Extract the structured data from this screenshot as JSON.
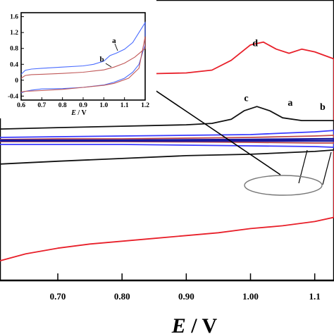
{
  "chart_data": [
    {
      "type": "line",
      "panel": "main",
      "xlabel": {
        "symbol": "E",
        "unit": " / V"
      },
      "ylabel": "",
      "title": "",
      "xlim": [
        0.61,
        1.13
      ],
      "ylim": [
        -1.0,
        1.0
      ],
      "xticks": [
        {
          "value": 0.7,
          "label": "0.70"
        },
        {
          "value": 0.8,
          "label": "0.80"
        },
        {
          "value": 0.9,
          "label": "0.90"
        },
        {
          "value": 1.0,
          "label": "1.00"
        },
        {
          "value": 1.1,
          "label": "1.1"
        }
      ],
      "grid": false,
      "annotation": "ellipse around the a/b curves near 1.00–1.13 V, connected by a line to the inset",
      "series": [
        {
          "label": "d",
          "color": "#e8202a",
          "label_pos": [
            1.003,
            0.67
          ],
          "x": [
            0.61,
            0.65,
            0.7,
            0.75,
            0.8,
            0.85,
            0.9,
            0.94,
            0.97,
            1.0,
            1.02,
            1.04,
            1.06,
            1.08,
            1.1,
            1.13,
            1.13,
            1.1,
            1.05,
            1.0,
            0.95,
            0.9,
            0.85,
            0.8,
            0.75,
            0.7,
            0.65,
            0.61
          ],
          "y": [
            0.38,
            0.4,
            0.43,
            0.455,
            0.47,
            0.475,
            0.48,
            0.5,
            0.57,
            0.68,
            0.7,
            0.65,
            0.62,
            0.65,
            0.63,
            0.58,
            -0.55,
            -0.58,
            -0.61,
            -0.63,
            -0.66,
            -0.68,
            -0.7,
            -0.72,
            -0.74,
            -0.77,
            -0.81,
            -0.86
          ]
        },
        {
          "label": "c",
          "color": "#111111",
          "label_pos": [
            0.99,
            0.28
          ],
          "x": [
            0.61,
            0.7,
            0.8,
            0.9,
            0.94,
            0.97,
            0.99,
            1.01,
            1.03,
            1.05,
            1.08,
            1.11,
            1.13,
            1.13,
            1.1,
            1.05,
            1.0,
            0.9,
            0.8,
            0.7,
            0.61
          ],
          "y": [
            0.08,
            0.09,
            0.1,
            0.11,
            0.12,
            0.15,
            0.21,
            0.24,
            0.21,
            0.16,
            0.14,
            0.14,
            0.14,
            -0.07,
            -0.08,
            -0.09,
            -0.1,
            -0.11,
            -0.13,
            -0.15,
            -0.17
          ]
        },
        {
          "label": "a",
          "color": "#3a3aff",
          "label_pos": [
            1.058,
            0.245
          ],
          "x": [
            0.61,
            0.7,
            0.8,
            0.9,
            1.0,
            1.05,
            1.1,
            1.13,
            1.13,
            1.1,
            1.0,
            0.9,
            0.8,
            0.7,
            0.61
          ],
          "y": [
            0.02,
            0.025,
            0.03,
            0.035,
            0.04,
            0.05,
            0.06,
            0.07,
            -0.05,
            -0.045,
            -0.04,
            -0.035,
            -0.03,
            -0.03,
            -0.03
          ]
        },
        {
          "label": "b",
          "color": "#c24a4a",
          "label_pos": [
            1.108,
            0.215
          ],
          "x": [
            0.61,
            0.7,
            0.8,
            0.9,
            1.0,
            1.05,
            1.1,
            1.13,
            1.13,
            1.1,
            1.0,
            0.9,
            0.8,
            0.7,
            0.61
          ],
          "y": [
            0.005,
            0.01,
            0.01,
            0.015,
            0.02,
            0.025,
            0.03,
            0.035,
            -0.02,
            -0.02,
            -0.015,
            -0.012,
            -0.01,
            -0.01,
            -0.01
          ]
        },
        {
          "label": "",
          "color": "#1a1aa0",
          "x": [
            0.61,
            0.8,
            1.0,
            1.13,
            1.13,
            1.0,
            0.8,
            0.61
          ],
          "y": [
            0.0,
            0.0,
            0.005,
            0.01,
            -0.005,
            -0.005,
            -0.004,
            -0.004
          ]
        }
      ]
    },
    {
      "type": "line",
      "panel": "inset",
      "xlabel": {
        "symbol": "E",
        "unit": " / V"
      },
      "ylabel": "",
      "xlim": [
        0.6,
        1.2
      ],
      "ylim": [
        -0.5,
        1.7
      ],
      "xticks": [
        {
          "value": 0.6,
          "label": "0.6"
        },
        {
          "value": 0.7,
          "label": "0.7"
        },
        {
          "value": 0.8,
          "label": "0.8"
        },
        {
          "value": 0.9,
          "label": "0.9"
        },
        {
          "value": 1.0,
          "label": "1.0"
        },
        {
          "value": 1.1,
          "label": "1.1"
        },
        {
          "value": 1.2,
          "label": "1.2"
        }
      ],
      "yticks": [
        {
          "value": 1.6,
          "label": "1.6"
        },
        {
          "value": 1.2,
          "label": "1.2"
        },
        {
          "value": 0.8,
          "label": "0.8"
        },
        {
          "value": 0.4,
          "label": "0.4"
        },
        {
          "value": 0.0,
          "label": "0"
        },
        {
          "value": -0.4,
          "label": "-0.4"
        }
      ],
      "series": [
        {
          "label": "a",
          "color": "#4a6cff",
          "label_pos": [
            1.04,
            0.94
          ],
          "x": [
            0.6,
            0.62,
            0.65,
            0.7,
            0.8,
            0.9,
            0.95,
            1.0,
            1.03,
            1.06,
            1.1,
            1.14,
            1.17,
            1.2,
            1.2,
            1.17,
            1.14,
            1.1,
            1.05,
            1.0,
            0.9,
            0.8,
            0.7,
            0.65,
            0.62,
            0.6
          ],
          "y": [
            0.15,
            0.25,
            0.28,
            0.3,
            0.33,
            0.36,
            0.4,
            0.48,
            0.62,
            0.68,
            0.78,
            0.95,
            1.2,
            1.45,
            0.9,
            0.4,
            0.2,
            0.05,
            -0.05,
            -0.12,
            -0.18,
            -0.21,
            -0.22,
            -0.25,
            -0.28,
            -0.32
          ]
        },
        {
          "label": "b",
          "color": "#c05858",
          "label_pos": [
            0.98,
            0.47
          ],
          "x": [
            0.6,
            0.62,
            0.65,
            0.7,
            0.8,
            0.9,
            1.0,
            1.05,
            1.1,
            1.15,
            1.2,
            1.2,
            1.17,
            1.12,
            1.05,
            1.0,
            0.9,
            0.8,
            0.7,
            0.62,
            0.6
          ],
          "y": [
            0.05,
            0.12,
            0.14,
            0.15,
            0.17,
            0.2,
            0.26,
            0.33,
            0.43,
            0.58,
            0.8,
            1.1,
            0.3,
            0.05,
            -0.08,
            -0.13,
            -0.18,
            -0.23,
            -0.26,
            -0.28,
            -0.3
          ]
        }
      ]
    }
  ]
}
